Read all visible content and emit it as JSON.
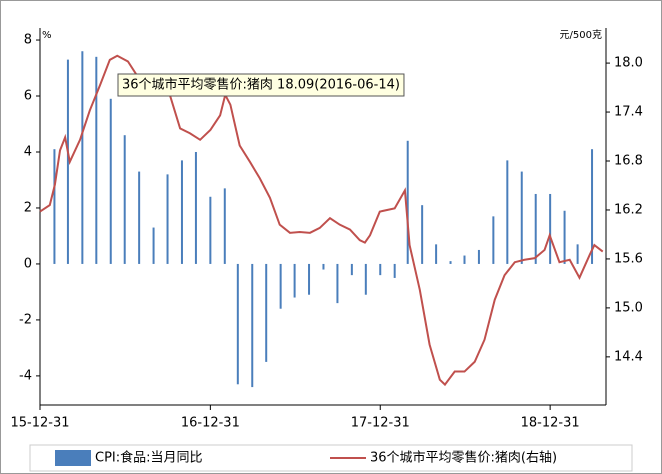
{
  "chart_data": {
    "type": "bar_line_dual",
    "y_axis_label": "%",
    "y2_axis_label": "元/500克",
    "xlim": [
      "2015-12-31",
      "2019-04-30"
    ],
    "xticks": [
      {
        "value": "2015-12-31",
        "label": "15-12-31"
      },
      {
        "value": "2016-12-31",
        "label": "16-12-31"
      },
      {
        "value": "2017-12-31",
        "label": "17-12-31"
      },
      {
        "value": "2018-12-31",
        "label": "18-12-31"
      }
    ],
    "ylim": [
      -5.04,
      8.43
    ],
    "yticks": [
      -4,
      -2,
      0,
      2,
      4,
      6,
      8
    ],
    "y2lim": [
      13.81,
      18.43
    ],
    "y2ticks": [
      {
        "value": 14.4,
        "label": "14.4"
      },
      {
        "value": 15,
        "label": "15.0"
      },
      {
        "value": 15.6,
        "label": "15.6"
      },
      {
        "value": 16.2,
        "label": "16.2"
      },
      {
        "value": 16.8,
        "label": "16.8"
      },
      {
        "value": 17.4,
        "label": "17.4"
      },
      {
        "value": 18,
        "label": "18.0"
      }
    ],
    "series": [
      {
        "name": "CPI:食品:当月同比",
        "type": "bar",
        "color": "#4a7ebb",
        "x": [
          "2016-01-31",
          "2016-02-29",
          "2016-03-31",
          "2016-04-30",
          "2016-05-31",
          "2016-06-30",
          "2016-07-31",
          "2016-08-31",
          "2016-09-30",
          "2016-10-31",
          "2016-11-30",
          "2016-12-31",
          "2017-01-31",
          "2017-02-28",
          "2017-03-31",
          "2017-04-30",
          "2017-05-31",
          "2017-06-30",
          "2017-07-31",
          "2017-08-31",
          "2017-09-30",
          "2017-10-31",
          "2017-11-30",
          "2017-12-31",
          "2018-01-31",
          "2018-02-28",
          "2018-03-31",
          "2018-04-30",
          "2018-05-31",
          "2018-06-30",
          "2018-07-31",
          "2018-08-31",
          "2018-09-30",
          "2018-10-31",
          "2018-11-30",
          "2018-12-31",
          "2019-01-31",
          "2019-02-28",
          "2019-03-31"
        ],
        "values": [
          4.1,
          7.3,
          7.6,
          7.4,
          5.9,
          4.6,
          3.3,
          1.3,
          3.2,
          3.7,
          4.0,
          2.4,
          2.7,
          -4.3,
          -4.4,
          -3.5,
          -1.6,
          -1.2,
          -1.1,
          -0.2,
          -1.4,
          -0.4,
          -1.1,
          -0.4,
          -0.5,
          4.4,
          2.1,
          0.7,
          0.1,
          0.3,
          0.5,
          1.7,
          3.7,
          3.3,
          2.5,
          2.5,
          1.9,
          0.7,
          4.1
        ]
      },
      {
        "name": "36个城市平均零售价:猪肉(右轴)",
        "type": "line",
        "axis": "y2",
        "color": "#c0504d",
        "x": [
          "2015-12-31",
          "2016-01-21",
          "2016-02-01",
          "2016-02-12",
          "2016-02-23",
          "2016-03-04",
          "2016-03-26",
          "2016-04-16",
          "2016-05-08",
          "2016-05-29",
          "2016-06-14",
          "2016-07-07",
          "2016-08-02",
          "2016-08-23",
          "2016-09-14",
          "2016-10-05",
          "2016-10-27",
          "2016-11-17",
          "2016-12-09",
          "2016-12-31",
          "2017-01-21",
          "2017-02-01",
          "2017-02-12",
          "2017-03-04",
          "2017-03-26",
          "2017-04-16",
          "2017-05-08",
          "2017-05-29",
          "2017-06-20",
          "2017-07-11",
          "2017-08-02",
          "2017-08-23",
          "2017-09-14",
          "2017-10-05",
          "2017-10-27",
          "2017-11-17",
          "2017-11-28",
          "2017-12-09",
          "2017-12-30",
          "2018-01-31",
          "2018-02-22",
          "2018-03-04",
          "2018-03-26",
          "2018-04-16",
          "2018-05-08",
          "2018-05-19",
          "2018-06-09",
          "2018-06-30",
          "2018-07-22",
          "2018-08-12",
          "2018-09-03",
          "2018-09-24",
          "2018-10-16",
          "2018-11-06",
          "2018-11-28",
          "2018-12-19",
          "2018-12-30",
          "2019-01-20",
          "2019-02-11",
          "2019-03-04",
          "2019-03-26",
          "2019-04-05",
          "2019-04-23"
        ],
        "values": [
          16.18,
          16.26,
          16.51,
          16.93,
          17.09,
          16.79,
          17.06,
          17.42,
          17.73,
          18.04,
          18.09,
          18.02,
          17.79,
          17.64,
          17.64,
          17.61,
          17.2,
          17.14,
          17.06,
          17.18,
          17.36,
          17.61,
          17.49,
          16.99,
          16.79,
          16.59,
          16.35,
          16.02,
          15.92,
          15.93,
          15.92,
          15.98,
          16.1,
          16.02,
          15.96,
          15.83,
          15.8,
          15.89,
          16.18,
          16.22,
          16.44,
          15.77,
          15.22,
          14.55,
          14.12,
          14.06,
          14.22,
          14.22,
          14.34,
          14.61,
          15.1,
          15.4,
          15.56,
          15.59,
          15.61,
          15.71,
          15.89,
          15.56,
          15.59,
          15.37,
          15.65,
          15.77,
          15.69
        ]
      }
    ],
    "annotation": "36个城市平均零售价:猪肉 18.09(2016-06-14)"
  }
}
